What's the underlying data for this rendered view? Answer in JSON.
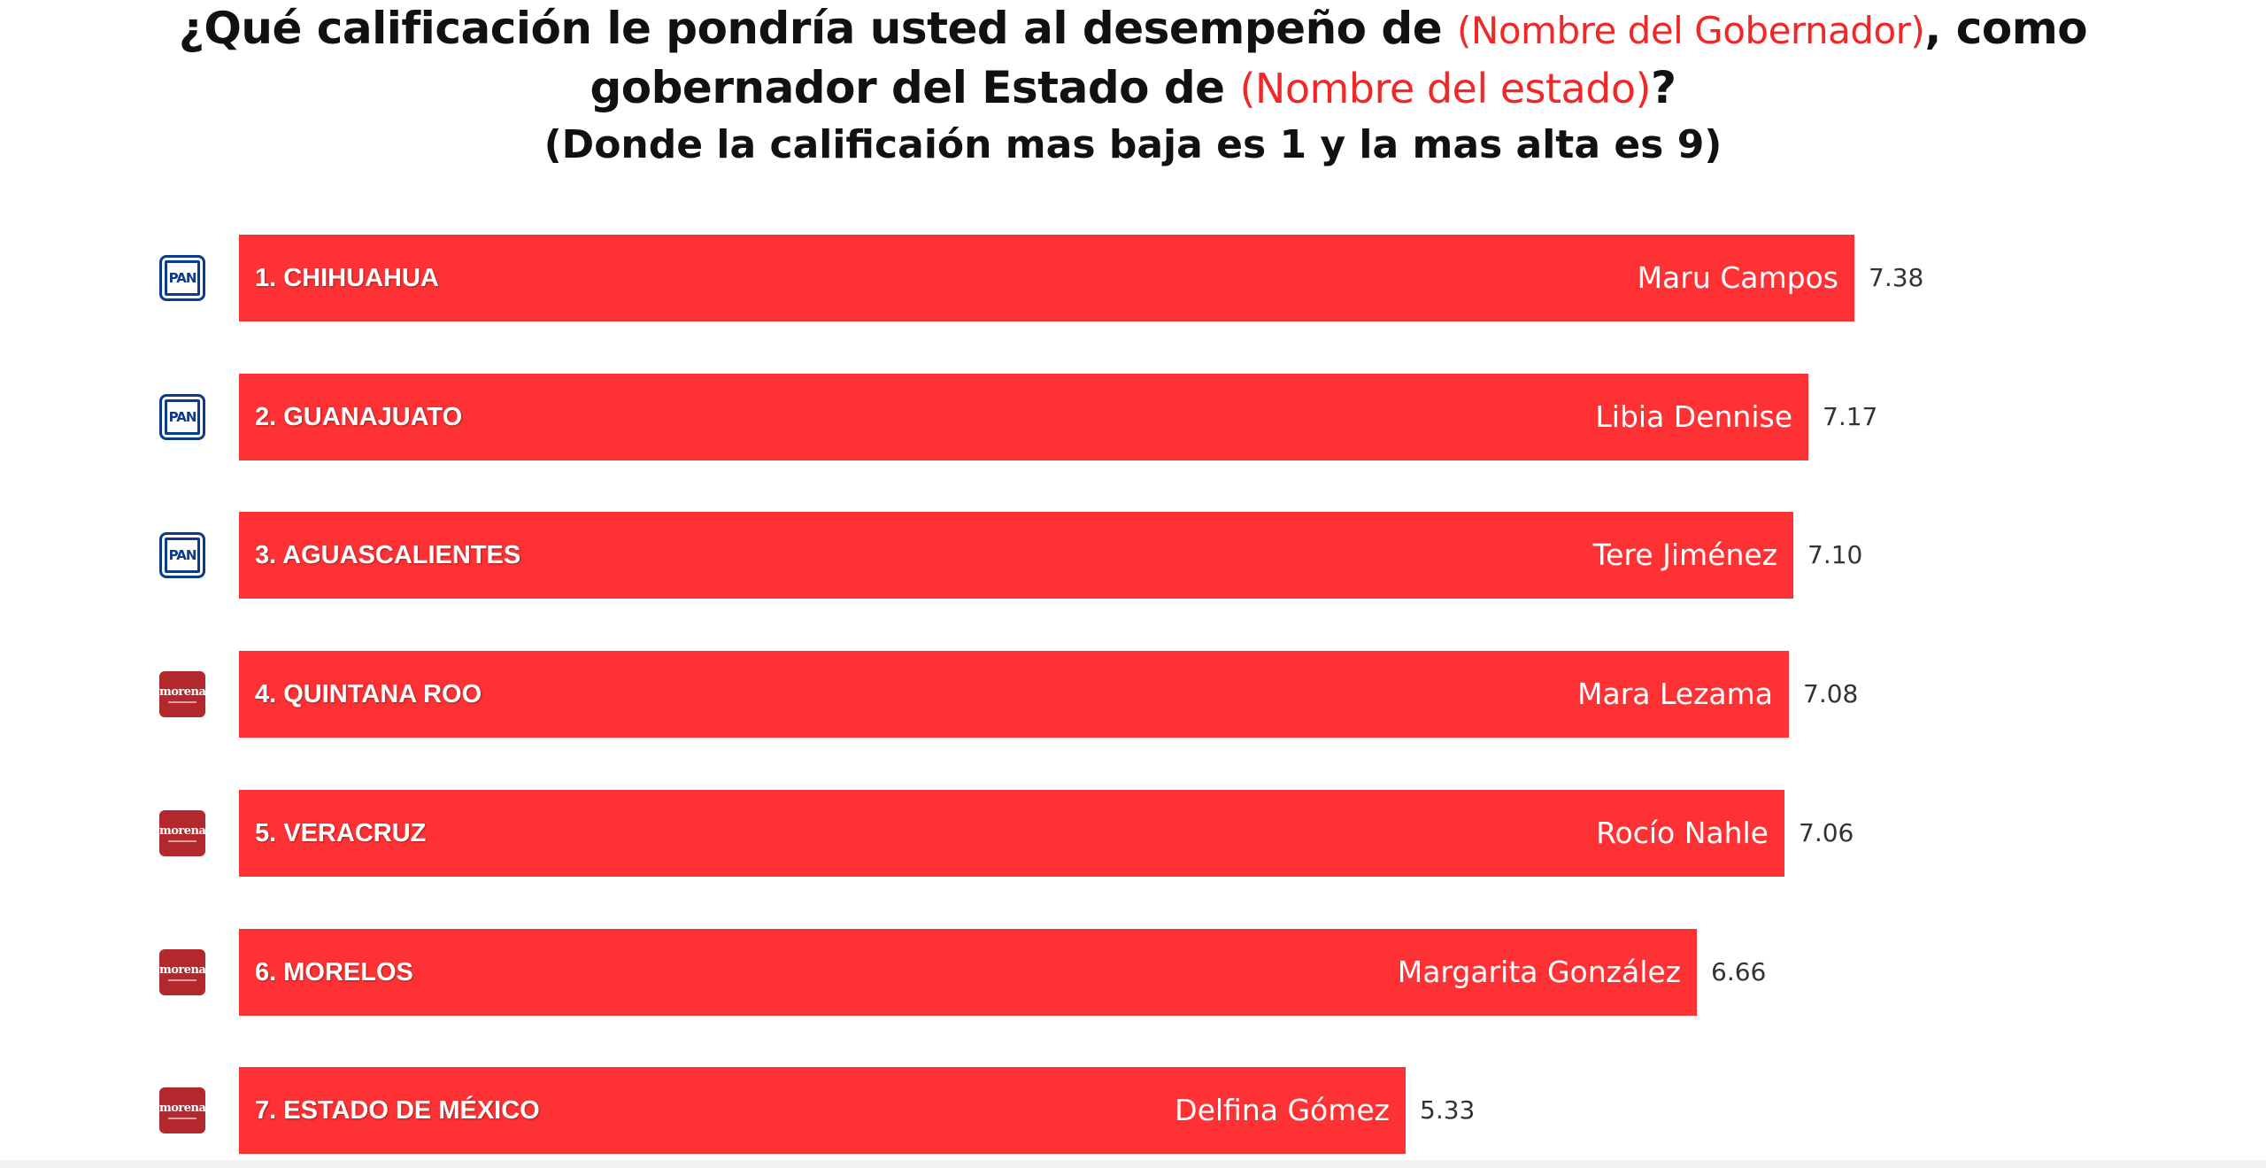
{
  "header": {
    "line1_a": "¿Qué calificación le pondría usted al desempeño de ",
    "line1_hl": "(Nombre del Gobernador)",
    "line1_b": ", como",
    "line2_a": "gobernador del Estado de ",
    "line2_hl": "(Nombre del estado)",
    "line2_b": "?",
    "line3": "(Donde la calificaión mas baja es 1 y la mas alta es 9)"
  },
  "colors": {
    "bar": "#fe3234",
    "highlight": "#f02828",
    "pan_blue": "#0b3a8f",
    "morena_red": "#b3282d"
  },
  "chart_data": {
    "type": "bar",
    "orientation": "horizontal",
    "categories": [
      "1. CHIHUAHUA",
      "2. GUANAJUATO",
      "3. AGUASCALIENTES",
      "4. QUINTANA ROO",
      "5. VERACRUZ",
      "6. MORELOS",
      "7. ESTADO DE MÉXICO"
    ],
    "governors": [
      "Maru Campos",
      "Libia Dennise",
      "Tere Jiménez",
      "Mara Lezama",
      "Rocío Nahle",
      "Margarita González",
      "Delfina Gómez"
    ],
    "parties": [
      "PAN",
      "PAN",
      "PAN",
      "morena",
      "morena",
      "morena",
      "morena"
    ],
    "values": [
      7.38,
      7.17,
      7.1,
      7.08,
      7.06,
      6.66,
      5.33
    ],
    "value_labels": [
      "7.38",
      "7.17",
      "7.10",
      "7.08",
      "7.06",
      "6.66",
      "5.33"
    ],
    "xlim": [
      0,
      7.38
    ],
    "grid": false,
    "legend": "none"
  }
}
